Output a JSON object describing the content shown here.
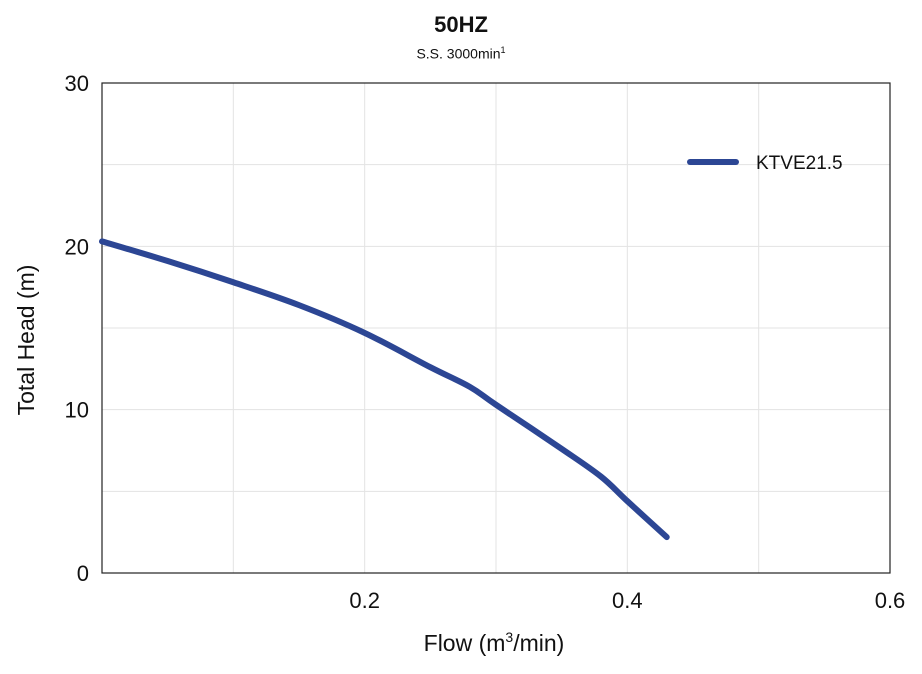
{
  "chart_data": {
    "type": "line",
    "title": "50HZ",
    "subtitle": "S.S. 3000min",
    "subtitle_superscript": "1",
    "xlabel": "Flow (m",
    "xlabel_superscript": "3",
    "xlabel_suffix": "/min)",
    "ylabel": "Total Head (m)",
    "xlim": [
      0,
      0.6
    ],
    "ylim": [
      0,
      30
    ],
    "x_ticks": [
      0.2,
      0.4,
      0.6
    ],
    "x_tick_labels": [
      "0.2",
      "0.4",
      "0.6"
    ],
    "x_minor_grid": [
      0.1,
      0.3,
      0.5
    ],
    "y_ticks": [
      0,
      10,
      20,
      30
    ],
    "y_tick_labels": [
      "0",
      "10",
      "20",
      "30"
    ],
    "y_minor_grid": [
      5,
      15,
      25
    ],
    "grid": true,
    "legend_position": "top-right",
    "series": [
      {
        "name": "KTVE21.5",
        "color": "#2c4694",
        "x": [
          0.0,
          0.05,
          0.1,
          0.15,
          0.2,
          0.25,
          0.28,
          0.3,
          0.35,
          0.38,
          0.4,
          0.43
        ],
        "y": [
          20.3,
          19.1,
          17.8,
          16.4,
          14.7,
          12.6,
          11.4,
          10.3,
          7.6,
          5.9,
          4.4,
          2.2
        ]
      }
    ]
  }
}
